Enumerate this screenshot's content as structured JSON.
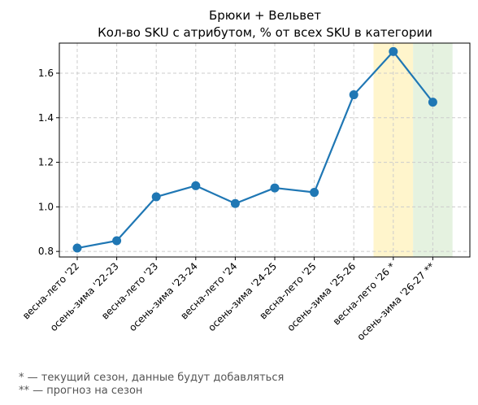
{
  "chart_data": {
    "type": "line",
    "title": "Брюки + Вельвет",
    "subtitle": "Кол-во SKU с атрибутом, % от всех SKU в категории",
    "xlabel": "",
    "ylabel": "",
    "categories": [
      "весна-лето '22",
      "осень-зима '22-23",
      "весна-лето '23",
      "осень-зима '23-24",
      "весна-лето '24",
      "осень-зима '24-25",
      "весна-лето '25",
      "осень-зима '25-26",
      "весна-лето '26 *",
      "осень-зима '26-27 **"
    ],
    "series": [
      {
        "values": [
          0.815,
          0.848,
          1.045,
          1.095,
          1.015,
          1.085,
          1.065,
          1.503,
          1.697,
          1.47
        ]
      }
    ],
    "ylim": [
      0.775,
      1.735
    ],
    "yticks": [
      0.8,
      1.0,
      1.2,
      1.4,
      1.6
    ],
    "ytick_labels": [
      "0.8",
      "1.0",
      "1.2",
      "1.4",
      "1.6"
    ],
    "grid": true,
    "line_color": "#1f77b4",
    "highlights": [
      {
        "category_index": 8,
        "color": "#fff5cc"
      },
      {
        "category_index": 9,
        "color": "#e5f2e0"
      }
    ]
  },
  "footnotes": {
    "current": "* — текущий сезон, данные будут добавляться",
    "forecast": "** — прогноз на сезон"
  }
}
